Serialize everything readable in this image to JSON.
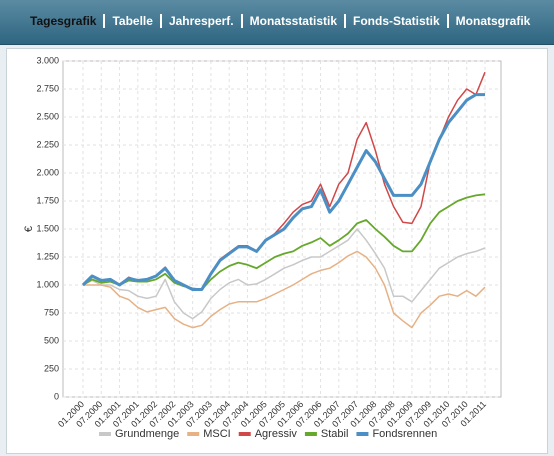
{
  "tabs": [
    "Tagesgrafik",
    "Tabelle",
    "Jahresperf.",
    "Monatsstatistik",
    "Fonds-Statistik",
    "Monatsgrafik"
  ],
  "chart_data": {
    "type": "line",
    "y_label": "€",
    "categories": [
      "01.2000",
      null,
      "07.2000",
      null,
      "01.2001",
      null,
      "07.2001",
      null,
      "01.2002",
      null,
      "07.2002",
      null,
      "01.2003",
      null,
      "07.2003",
      null,
      "01.2004",
      null,
      "07.2004",
      null,
      "01.2005",
      null,
      "07.2005",
      null,
      "01.2006",
      null,
      "07.2006",
      null,
      "01.2007",
      null,
      "07.2007",
      null,
      "01.2008",
      null,
      "07.2008",
      null,
      "01.2009",
      null,
      "07.2009",
      null,
      "01.2010",
      null,
      "07.2010",
      null,
      "01.2011"
    ],
    "ylim": [
      0,
      3000
    ],
    "yticks": [
      0,
      250,
      500,
      750,
      {
        "value": 1000,
        "label": "1.000"
      },
      {
        "value": 1250,
        "label": "1.250"
      },
      {
        "value": 1500,
        "label": "1.500"
      },
      {
        "value": 1750,
        "label": "1.750"
      },
      {
        "value": 2000,
        "label": "2.000"
      },
      {
        "value": 2250,
        "label": "2.250"
      },
      {
        "value": 2500,
        "label": "2.500"
      },
      {
        "value": 2750,
        "label": "2.750"
      },
      {
        "value": 3000,
        "label": "3.000"
      }
    ],
    "grid": true,
    "legend": "bottom",
    "series": [
      {
        "name": "Grundmenge",
        "color": "#c8c8c8",
        "width": 1.5,
        "values": [
          1000,
          1040,
          1000,
          1000,
          960,
          950,
          900,
          880,
          900,
          1050,
          850,
          750,
          700,
          760,
          880,
          960,
          1020,
          1050,
          1000,
          1010,
          1050,
          1100,
          1150,
          1180,
          1220,
          1250,
          1250,
          1300,
          1350,
          1400,
          1500,
          1400,
          1280,
          1150,
          900,
          900,
          850,
          950,
          1050,
          1150,
          1200,
          1250,
          1280,
          1300,
          1330
        ]
      },
      {
        "name": "MSCI",
        "color": "#e6b185",
        "width": 1.5,
        "values": [
          1000,
          1000,
          1000,
          980,
          900,
          870,
          800,
          760,
          780,
          800,
          700,
          650,
          620,
          640,
          720,
          780,
          830,
          850,
          850,
          850,
          880,
          920,
          960,
          1000,
          1050,
          1100,
          1130,
          1150,
          1200,
          1260,
          1300,
          1250,
          1150,
          1000,
          750,
          680,
          620,
          750,
          820,
          900,
          920,
          900,
          950,
          900,
          980
        ]
      },
      {
        "name": "Agressiv",
        "color": "#d04848",
        "width": 1.5,
        "values": [
          1000,
          1080,
          1040,
          1050,
          1000,
          1070,
          1040,
          1050,
          1080,
          1160,
          1040,
          1000,
          960,
          960,
          1100,
          1230,
          1290,
          1350,
          1350,
          1300,
          1400,
          1460,
          1550,
          1650,
          1720,
          1750,
          1900,
          1700,
          1900,
          2000,
          2300,
          2450,
          2200,
          1900,
          1700,
          1560,
          1550,
          1700,
          2100,
          2300,
          2500,
          2650,
          2750,
          2700,
          2900
        ]
      },
      {
        "name": "Stabil",
        "color": "#66a82c",
        "width": 1.8,
        "values": [
          1000,
          1050,
          1020,
          1030,
          1000,
          1040,
          1030,
          1030,
          1050,
          1100,
          1020,
          990,
          970,
          960,
          1050,
          1120,
          1170,
          1200,
          1180,
          1150,
          1200,
          1250,
          1280,
          1300,
          1350,
          1380,
          1420,
          1350,
          1400,
          1460,
          1550,
          1580,
          1500,
          1430,
          1350,
          1300,
          1300,
          1400,
          1550,
          1650,
          1700,
          1750,
          1780,
          1800,
          1810
        ]
      },
      {
        "name": "Fondsrennen",
        "color": "#4b8fc4",
        "width": 3,
        "values": [
          1000,
          1080,
          1040,
          1050,
          1000,
          1060,
          1040,
          1050,
          1080,
          1150,
          1040,
          1000,
          960,
          960,
          1100,
          1220,
          1280,
          1340,
          1340,
          1300,
          1400,
          1450,
          1500,
          1600,
          1680,
          1700,
          1850,
          1650,
          1750,
          1900,
          2050,
          2200,
          2100,
          1950,
          1800,
          1800,
          1800,
          1900,
          2100,
          2300,
          2450,
          2550,
          2650,
          2700,
          2700
        ]
      }
    ]
  }
}
